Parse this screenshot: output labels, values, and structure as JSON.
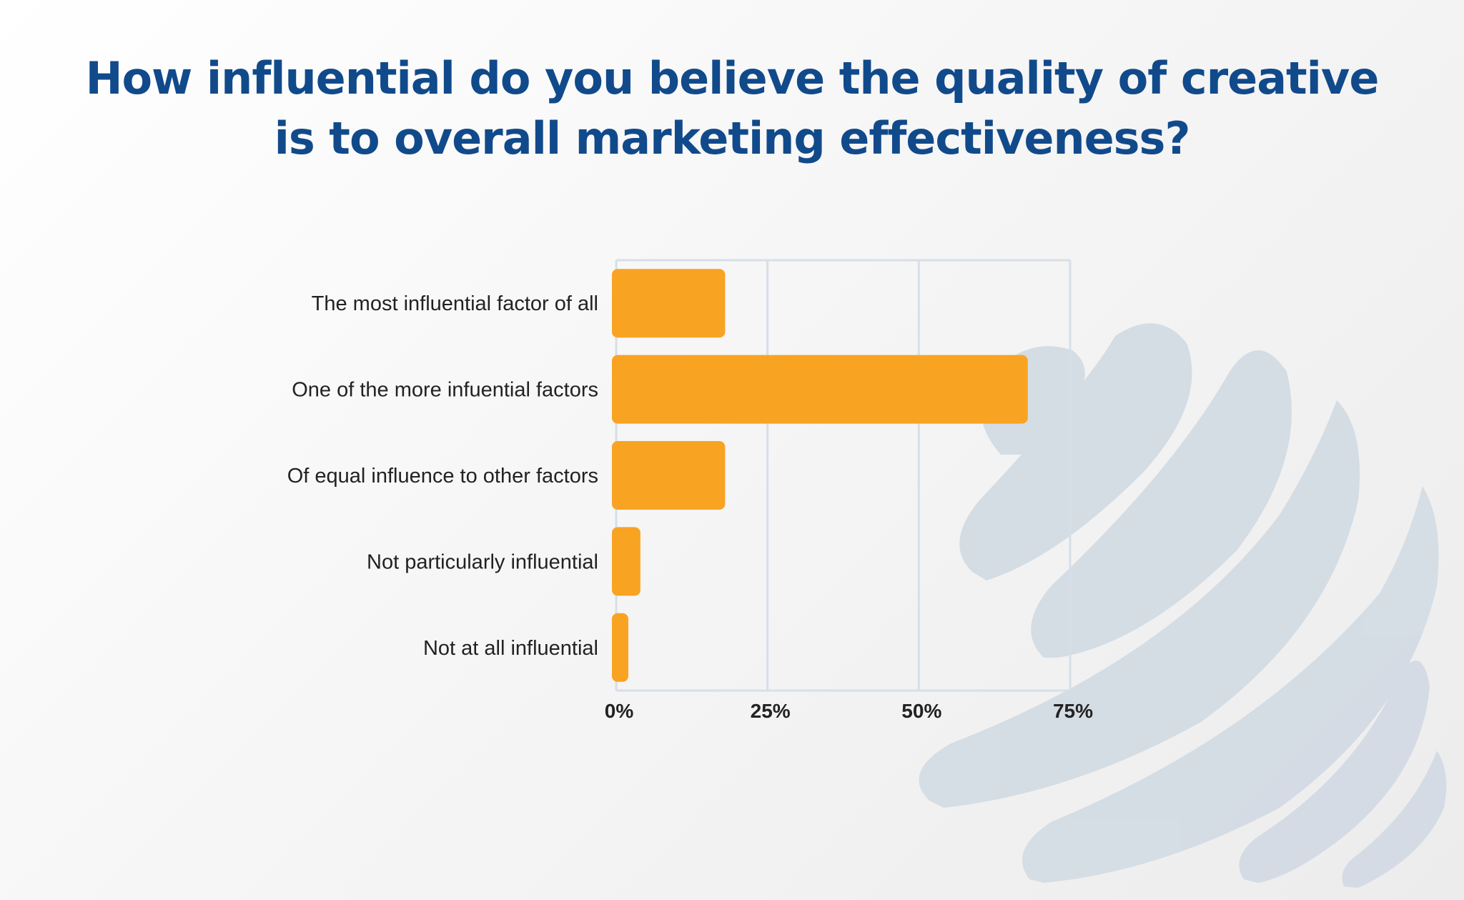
{
  "title": {
    "line1": "How influential do you believe the quality of creative",
    "line2": "is to overall marketing effectiveness?"
  },
  "colors": {
    "title": "#114a8b",
    "bar": "#f8a322",
    "grid": "#d6dfe9",
    "watermark": "#d3dbe4",
    "label": "#222222"
  },
  "watermark": {
    "icon": "globe-swoosh-logo-icon"
  },
  "chart_data": {
    "type": "bar",
    "orientation": "horizontal",
    "title": "How influential do you believe the quality of creative is to overall marketing effectiveness?",
    "categories": [
      "The most influential factor of all",
      "One of the more infuential factors",
      "Of equal influence to other factors",
      "Not particularly influential",
      "Not at all influential"
    ],
    "values": [
      18,
      68,
      18,
      4,
      2
    ],
    "unit": "%",
    "xlim": [
      0,
      75
    ],
    "x_ticks": [
      "0%",
      "25%",
      "50%",
      "75%"
    ],
    "grid": true,
    "legend": "none"
  }
}
